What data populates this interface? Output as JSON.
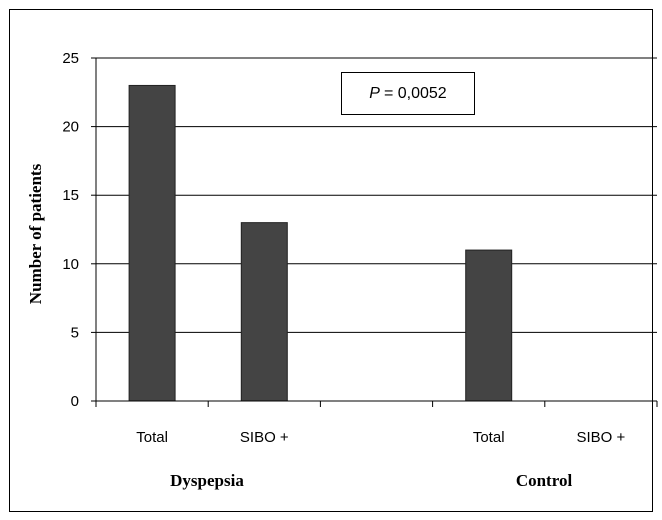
{
  "chart_data": {
    "type": "bar",
    "categories": [
      "Total",
      "SIBO +",
      "",
      "Total",
      "SIBO +"
    ],
    "values": [
      23,
      13,
      null,
      11,
      0
    ],
    "groups": [
      "Dyspepsia",
      "Control"
    ],
    "title": "",
    "xlabel": "",
    "ylabel": "Number of patients",
    "ylim": [
      0,
      25
    ],
    "yticks": [
      0,
      5,
      10,
      15,
      20,
      25
    ],
    "grid": true,
    "legend": "none",
    "bar_color": "#444444",
    "annotation": {
      "italic_part": "P",
      "rest": "= 0,0052"
    }
  }
}
